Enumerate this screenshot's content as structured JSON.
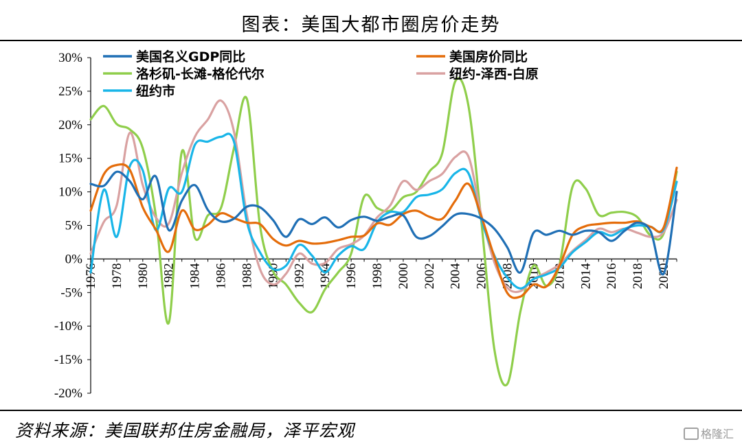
{
  "title": "图表：美国大都市圈房价走势",
  "source": "资料来源：美国联邦住房金融局，泽平宏观",
  "watermark": "格隆汇",
  "chart_data": {
    "type": "line",
    "title": "图表：美国大都市圈房价走势",
    "xlabel": "",
    "ylabel": "",
    "ylim": [
      -20,
      30
    ],
    "xlim": [
      1976,
      2021
    ],
    "y_ticks": [
      -20,
      -15,
      -10,
      -5,
      0,
      5,
      10,
      15,
      20,
      25,
      30
    ],
    "y_tick_labels": [
      "-20%",
      "-15%",
      "-10%",
      "-5%",
      "0%",
      "5%",
      "10%",
      "15%",
      "20%",
      "25%",
      "30%"
    ],
    "x_tick_labels": [
      "1976",
      "1978",
      "1980",
      "1982",
      "1984",
      "1986",
      "1988",
      "1990",
      "1992",
      "1994",
      "1996",
      "1998",
      "2000",
      "2002",
      "2004",
      "2006",
      "2008",
      "2010",
      "2012",
      "2014",
      "2016",
      "2018",
      "2020"
    ],
    "grid": false,
    "legend_position": "top",
    "series": [
      {
        "name": "美国名义GDP同比",
        "color": "#1f6fb5",
        "x": [
          1976,
          1977,
          1978,
          1979,
          1980,
          1981,
          1982,
          1983,
          1984,
          1985,
          1986,
          1987,
          1988,
          1989,
          1990,
          1991,
          1992,
          1993,
          1994,
          1995,
          1996,
          1997,
          1998,
          1999,
          2000,
          2001,
          2002,
          2003,
          2004,
          2005,
          2006,
          2007,
          2008,
          2009,
          2010,
          2011,
          2012,
          2013,
          2014,
          2015,
          2016,
          2017,
          2018,
          2019,
          2020,
          2021
        ],
        "y": [
          11.2,
          10.9,
          13.0,
          11.6,
          8.9,
          12.3,
          4.3,
          8.7,
          11.0,
          7.3,
          5.6,
          6.0,
          7.8,
          7.7,
          5.8,
          3.3,
          5.9,
          5.2,
          6.2,
          4.7,
          5.8,
          6.3,
          5.7,
          6.3,
          6.5,
          3.3,
          3.4,
          4.9,
          6.6,
          6.7,
          6.0,
          4.5,
          1.7,
          -2.0,
          3.9,
          3.6,
          4.2,
          3.6,
          4.2,
          4.0,
          2.7,
          4.2,
          5.4,
          4.1,
          -2.2,
          10.0
        ]
      },
      {
        "name": "美国房价同比",
        "color": "#e46c0a",
        "x": [
          1976,
          1977,
          1978,
          1979,
          1980,
          1981,
          1982,
          1983,
          1984,
          1985,
          1986,
          1987,
          1988,
          1989,
          1990,
          1991,
          1992,
          1993,
          1994,
          1995,
          1996,
          1997,
          1998,
          1999,
          2000,
          2001,
          2002,
          2003,
          2004,
          2005,
          2006,
          2007,
          2008,
          2009,
          2010,
          2011,
          2012,
          2013,
          2014,
          2015,
          2016,
          2017,
          2018,
          2019,
          2020,
          2021
        ],
        "y": [
          7.2,
          12.6,
          14.0,
          13.3,
          7.7,
          4.4,
          1.1,
          7.2,
          4.4,
          5.1,
          6.8,
          6.1,
          5.4,
          5.2,
          3.0,
          2.0,
          2.7,
          2.3,
          2.4,
          2.8,
          3.3,
          3.5,
          5.3,
          5.1,
          6.7,
          7.2,
          6.3,
          6.0,
          8.7,
          11.2,
          6.3,
          0.3,
          -5.1,
          -5.6,
          -3.8,
          -4.1,
          -1.0,
          3.6,
          4.9,
          5.2,
          5.4,
          5.4,
          5.6,
          4.8,
          4.7,
          13.6
        ]
      },
      {
        "name": "洛杉矶-长滩-格伦代尔",
        "color": "#8fce4b",
        "x": [
          1976,
          1977,
          1978,
          1979,
          1980,
          1981,
          1982,
          1983,
          1984,
          1985,
          1986,
          1987,
          1988,
          1989,
          1990,
          1991,
          1992,
          1993,
          1994,
          1995,
          1996,
          1997,
          1998,
          1999,
          2000,
          2001,
          2002,
          2003,
          2004,
          2005,
          2006,
          2007,
          2008,
          2009,
          2010,
          2011,
          2012,
          2013,
          2014,
          2015,
          2016,
          2017,
          2018,
          2019,
          2020,
          2021
        ],
        "y": [
          20.8,
          22.8,
          20.1,
          19.3,
          16.5,
          6.5,
          -9.5,
          16.0,
          3.2,
          6.5,
          7.6,
          16.5,
          23.8,
          5.0,
          -1.8,
          -3.8,
          -6.5,
          -7.9,
          -4.5,
          -2.0,
          0.8,
          9.3,
          7.6,
          7.2,
          9.2,
          10.0,
          13.0,
          15.8,
          26.5,
          22.9,
          5.5,
          -13.5,
          -18.6,
          -7.8,
          -1.0,
          -4.0,
          -0.8,
          10.8,
          10.5,
          6.6,
          6.9,
          7.0,
          6.2,
          3.5,
          3.8,
          13.0
        ]
      },
      {
        "name": "纽约-泽西-白原",
        "color": "#d9a1a1",
        "x": [
          1976,
          1977,
          1978,
          1979,
          1980,
          1981,
          1982,
          1983,
          1984,
          1985,
          1986,
          1987,
          1988,
          1989,
          1990,
          1991,
          1992,
          1993,
          1994,
          1995,
          1996,
          1997,
          1998,
          1999,
          2000,
          2001,
          2002,
          2003,
          2004,
          2005,
          2006,
          2007,
          2008,
          2009,
          2010,
          2011,
          2012,
          2013,
          2014,
          2015,
          2016,
          2017,
          2018,
          2019,
          2020,
          2021
        ],
        "y": [
          0.8,
          5.5,
          8.0,
          18.8,
          11.0,
          6.2,
          5.3,
          12.8,
          18.2,
          20.8,
          23.6,
          19.0,
          6.5,
          -1.5,
          -3.8,
          -2.2,
          0.8,
          -0.7,
          -0.6,
          1.5,
          2.2,
          3.5,
          6.2,
          8.0,
          11.6,
          10.3,
          11.6,
          12.7,
          15.2,
          15.3,
          6.5,
          -0.5,
          -4.3,
          -4.8,
          -3.0,
          -2.0,
          -0.8,
          1.2,
          2.8,
          4.5,
          4.0,
          4.5,
          3.9,
          3.3,
          4.0,
          8.8
        ]
      },
      {
        "name": "纽约市",
        "color": "#18b5e8",
        "x": [
          1976,
          1977,
          1978,
          1979,
          1980,
          1981,
          1982,
          1983,
          1984,
          1985,
          1986,
          1987,
          1988,
          1989,
          1990,
          1991,
          1992,
          1993,
          1994,
          1995,
          1996,
          1997,
          1998,
          1999,
          2000,
          2001,
          2002,
          2003,
          2004,
          2005,
          2006,
          2007,
          2008,
          2009,
          2010,
          2011,
          2012,
          2013,
          2014,
          2015,
          2016,
          2017,
          2018,
          2019,
          2020,
          2021
        ],
        "y": [
          -2.0,
          10.3,
          3.3,
          13.8,
          13.2,
          4.3,
          10.5,
          10.0,
          17.0,
          17.5,
          18.2,
          17.5,
          5.5,
          1.0,
          -1.5,
          -1.0,
          2.1,
          0.5,
          -2.0,
          0.5,
          1.9,
          1.5,
          5.5,
          7.0,
          7.0,
          9.2,
          9.6,
          10.4,
          12.8,
          12.8,
          5.8,
          0.5,
          -2.8,
          -4.4,
          -3.0,
          -2.3,
          -1.3,
          1.0,
          2.5,
          4.0,
          3.5,
          4.5,
          5.0,
          4.8,
          4.4,
          11.5
        ]
      }
    ]
  }
}
